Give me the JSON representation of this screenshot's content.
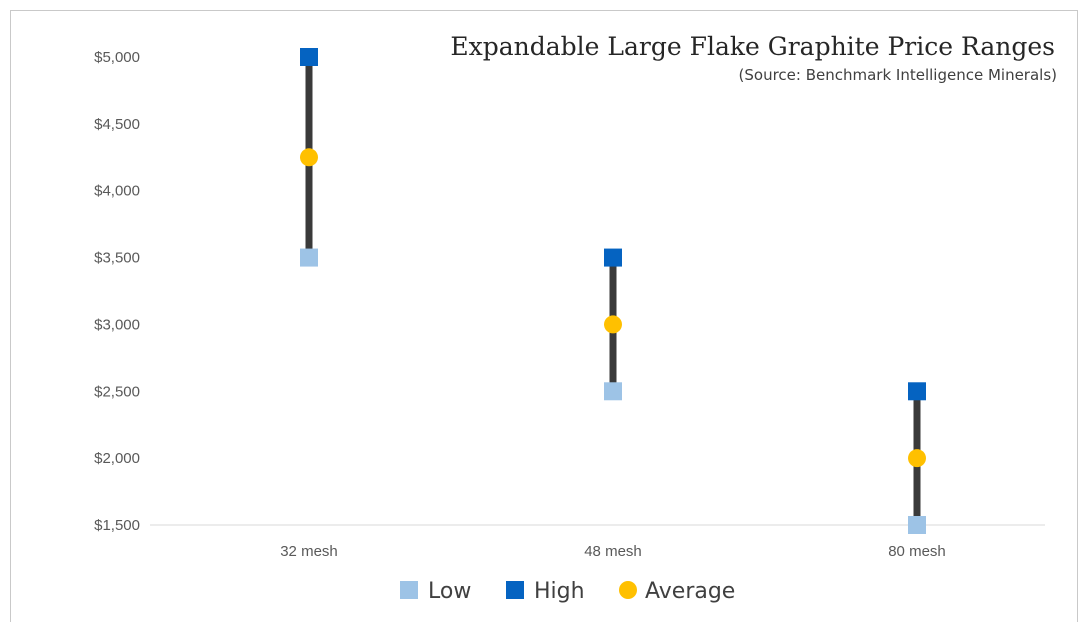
{
  "chart_data": {
    "type": "scatter",
    "title": "Expandable Large Flake Graphite Price Ranges",
    "subtitle": "(Source: Benchmark Intelligence Minerals)",
    "categories": [
      "32 mesh",
      "48 mesh",
      "80 mesh"
    ],
    "ylim": [
      1500,
      5000
    ],
    "yticks": [
      1500,
      2000,
      2500,
      3000,
      3500,
      4000,
      4500,
      5000
    ],
    "ytick_labels": [
      "$1,500",
      "$2,000",
      "$2,500",
      "$3,000",
      "$3,500",
      "$4,000",
      "$4,500",
      "$5,000"
    ],
    "grid": false,
    "legend_position": "bottom",
    "series": [
      {
        "name": "Low",
        "values": [
          3500,
          2500,
          1500
        ],
        "color": "#9dc3e6",
        "marker": "square"
      },
      {
        "name": "High",
        "values": [
          5000,
          3500,
          2500
        ],
        "color": "#0563c1",
        "marker": "square"
      },
      {
        "name": "Average",
        "values": [
          4250,
          3000,
          2000
        ],
        "color": "#ffc000",
        "marker": "circle"
      }
    ],
    "range_line_color": "#3a3a3a"
  }
}
